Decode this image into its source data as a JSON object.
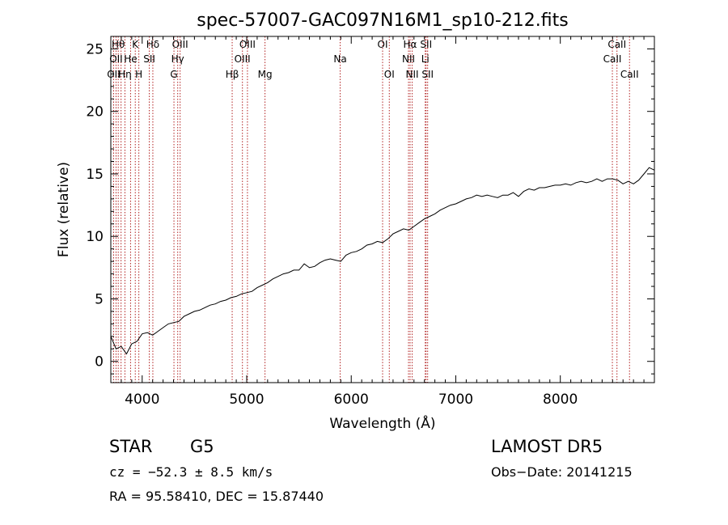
{
  "chart_data": {
    "type": "line",
    "title": "spec-57007-GAC097N16M1_sp10-212.fits",
    "xlabel": "Wavelength (Å)",
    "ylabel": "Flux (relative)",
    "xlim": [
      3700,
      8900
    ],
    "ylim": [
      -1.7,
      26
    ],
    "x_ticks": [
      4000,
      5000,
      6000,
      7000,
      8000
    ],
    "y_ticks": [
      0,
      5,
      10,
      15,
      20,
      25
    ],
    "grid": false,
    "series": [
      {
        "color": "#000000",
        "x": [
          3700,
          3750,
          3800,
          3850,
          3900,
          3950,
          4000,
          4050,
          4100,
          4150,
          4200,
          4250,
          4300,
          4350,
          4400,
          4450,
          4500,
          4550,
          4600,
          4650,
          4700,
          4750,
          4800,
          4850,
          4900,
          4950,
          5000,
          5050,
          5100,
          5150,
          5200,
          5250,
          5300,
          5350,
          5400,
          5450,
          5500,
          5550,
          5600,
          5650,
          5700,
          5750,
          5800,
          5850,
          5900,
          5950,
          6000,
          6050,
          6100,
          6150,
          6200,
          6250,
          6300,
          6350,
          6400,
          6450,
          6500,
          6550,
          6600,
          6650,
          6700,
          6750,
          6800,
          6850,
          6900,
          6950,
          7000,
          7050,
          7100,
          7150,
          7200,
          7250,
          7300,
          7350,
          7400,
          7450,
          7500,
          7550,
          7600,
          7650,
          7700,
          7750,
          7800,
          7850,
          7900,
          7950,
          8000,
          8050,
          8100,
          8150,
          8200,
          8250,
          8300,
          8350,
          8400,
          8450,
          8500,
          8550,
          8600,
          8650,
          8700,
          8750,
          8800,
          8850,
          8900
        ],
        "values": [
          2.0,
          1.0,
          1.2,
          0.6,
          1.4,
          1.6,
          2.2,
          2.3,
          2.1,
          2.4,
          2.7,
          3.0,
          3.1,
          3.2,
          3.6,
          3.8,
          4.0,
          4.1,
          4.3,
          4.5,
          4.6,
          4.8,
          4.9,
          5.1,
          5.2,
          5.4,
          5.5,
          5.6,
          5.9,
          6.1,
          6.3,
          6.6,
          6.8,
          7.0,
          7.1,
          7.3,
          7.3,
          7.8,
          7.5,
          7.6,
          7.9,
          8.1,
          8.2,
          8.1,
          8.0,
          8.5,
          8.7,
          8.8,
          9.0,
          9.3,
          9.4,
          9.6,
          9.5,
          9.8,
          10.2,
          10.4,
          10.6,
          10.5,
          10.8,
          11.1,
          11.4,
          11.6,
          11.8,
          12.1,
          12.3,
          12.5,
          12.6,
          12.8,
          13.0,
          13.1,
          13.3,
          13.2,
          13.3,
          13.2,
          13.1,
          13.3,
          13.3,
          13.5,
          13.2,
          13.6,
          13.8,
          13.7,
          13.9,
          13.9,
          14.0,
          14.1,
          14.1,
          14.2,
          14.1,
          14.3,
          14.4,
          14.3,
          14.4,
          14.6,
          14.4,
          14.6,
          14.6,
          14.5,
          14.2,
          14.4,
          14.2,
          14.5,
          15.0,
          15.5,
          15.3
        ]
      }
    ],
    "line_marks": [
      {
        "wl": 3727,
        "label": "OII",
        "row": 2
      },
      {
        "wl": 3750,
        "label": "OII",
        "row": 1
      },
      {
        "wl": 3771,
        "label": "Hθ",
        "row": 0
      },
      {
        "wl": 3798,
        "label": "",
        "row": 0
      },
      {
        "wl": 3835,
        "label": "Hη",
        "row": 2
      },
      {
        "wl": 3889,
        "label": "He",
        "row": 1
      },
      {
        "wl": 3934,
        "label": "K",
        "row": 0
      },
      {
        "wl": 3968,
        "label": "H",
        "row": 2
      },
      {
        "wl": 4068,
        "label": "SII",
        "row": 1
      },
      {
        "wl": 4102,
        "label": "Hδ",
        "row": 0
      },
      {
        "wl": 4304,
        "label": "G",
        "row": 2
      },
      {
        "wl": 4340,
        "label": "Hγ",
        "row": 1
      },
      {
        "wl": 4363,
        "label": "OIII",
        "row": 0
      },
      {
        "wl": 4861,
        "label": "Hβ",
        "row": 2
      },
      {
        "wl": 4959,
        "label": "OIII",
        "row": 1
      },
      {
        "wl": 5007,
        "label": "OIII",
        "row": 0
      },
      {
        "wl": 5175,
        "label": "Mg",
        "row": 2
      },
      {
        "wl": 5894,
        "label": "Na",
        "row": 1
      },
      {
        "wl": 6300,
        "label": "OI",
        "row": 0
      },
      {
        "wl": 6364,
        "label": "OI",
        "row": 2
      },
      {
        "wl": 6548,
        "label": "NII",
        "row": 1
      },
      {
        "wl": 6563,
        "label": "Hα",
        "row": 0
      },
      {
        "wl": 6583,
        "label": "NII",
        "row": 2
      },
      {
        "wl": 6708,
        "label": "Li",
        "row": 1
      },
      {
        "wl": 6716,
        "label": "SII",
        "row": 0
      },
      {
        "wl": 6731,
        "label": "SII",
        "row": 2
      },
      {
        "wl": 8498,
        "label": "CaII",
        "row": 1
      },
      {
        "wl": 8542,
        "label": "CaII",
        "row": 0
      },
      {
        "wl": 8662,
        "label": "CaII",
        "row": 2
      }
    ]
  },
  "info": {
    "class": "STAR",
    "subclass": "G5",
    "survey": "LAMOST DR5",
    "cz": "cz = −52.3 ± 8.5 km/s",
    "obs_date": "Obs−Date: 20141215",
    "coords": "RA =  95.58410, DEC =  15.87440"
  },
  "colors": {
    "line_marker": "#b22222",
    "spectrum": "#000000"
  }
}
